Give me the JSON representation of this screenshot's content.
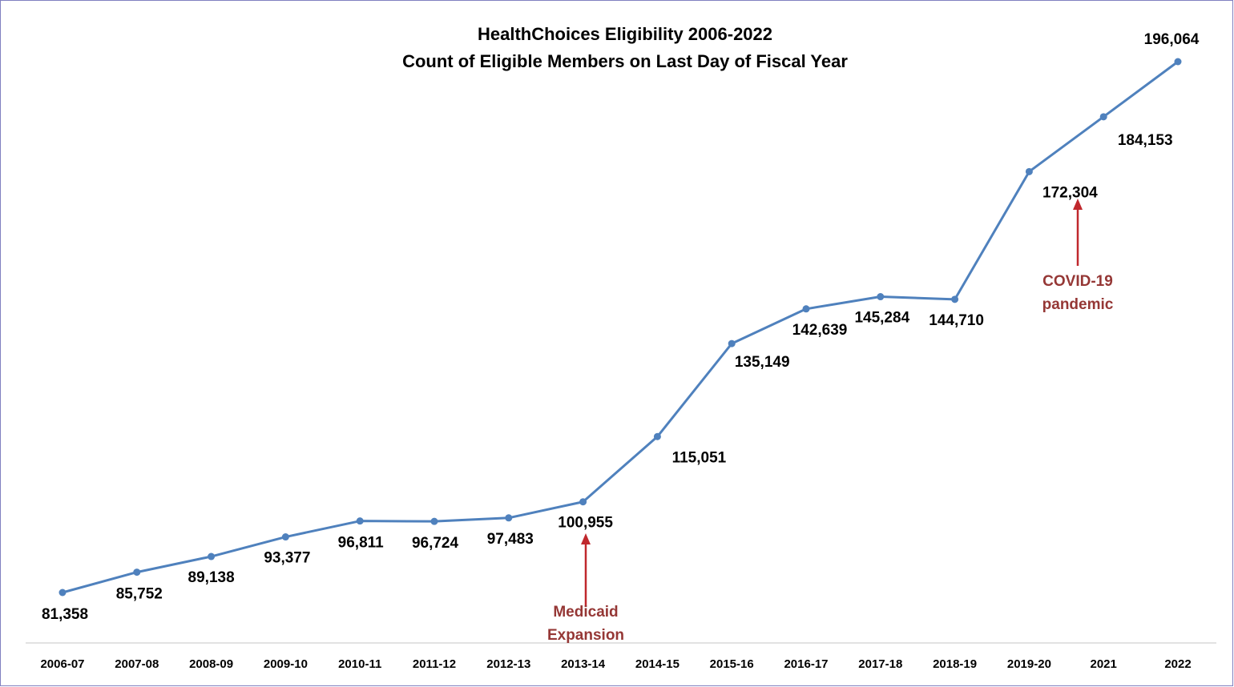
{
  "chart_data": {
    "type": "line",
    "title": [
      "HealthChoices Eligibility 2006-2022",
      "Count of Eligible Members on Last Day of Fiscal Year"
    ],
    "categories": [
      "2006-07",
      "2007-08",
      "2008-09",
      "2009-10",
      "2010-11",
      "2011-12",
      "2012-13",
      "2013-14",
      "2014-15",
      "2015-16",
      "2016-17",
      "2017-18",
      "2018-19",
      "2019-20",
      "2021",
      "2022"
    ],
    "series": [
      {
        "name": "Eligible Members",
        "color": "#4f81bd",
        "values": [
          81358,
          85752,
          89138,
          93377,
          96811,
          96724,
          97483,
          100955,
          115051,
          135149,
          142639,
          145284,
          144710,
          172304,
          184153,
          196064
        ],
        "value_labels": [
          "81,358",
          "85,752",
          "89,138",
          "93,377",
          "96,811",
          "96,724",
          "97,483",
          "100,955",
          "115,051",
          "135,149",
          "142,639",
          "145,284",
          "144,710",
          "172,304",
          "184,153",
          "196,064"
        ]
      }
    ],
    "annotations": [
      {
        "lines": [
          "Medicaid",
          "Expansion"
        ],
        "color": "#953735"
      },
      {
        "lines": [
          "COVID-19",
          "pandemic"
        ],
        "color": "#953735"
      }
    ]
  }
}
